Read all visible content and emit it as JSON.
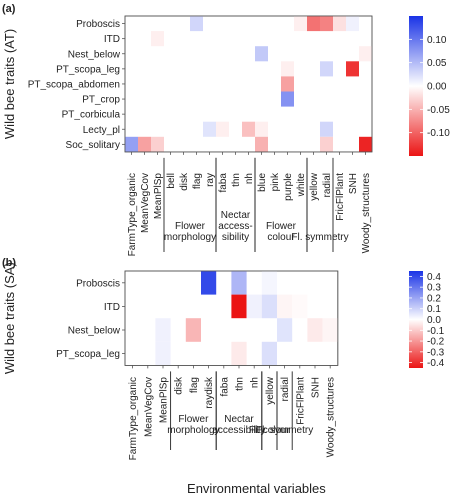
{
  "chart_data": [
    {
      "type": "heatmap",
      "panel_label": "(a)",
      "ylabel": "Wild bee traits (AT)",
      "rows": [
        "Proboscis",
        "ITD",
        "Nest_below",
        "PT_scopa_leg",
        "PT_scopa_abdomen",
        "PT_crop",
        "PT_corbicula",
        "Lecty_pl",
        "Soc_solitary"
      ],
      "columns": [
        "FarmType_organic",
        "MeanVegCov",
        "MeanPlSp",
        "bell",
        "disk",
        "flag",
        "ray",
        "faba",
        "thn",
        "nh",
        "blue",
        "pink",
        "purple",
        "white",
        "yellow",
        "radial",
        "FricFlPlant",
        "SNH",
        "Woody_structures"
      ],
      "groups": [
        {
          "label": [
            "Flower",
            "morphology"
          ],
          "from": "bell",
          "to": "ray"
        },
        {
          "label": [
            "Nectar",
            "access-",
            "sibility"
          ],
          "from": "faba",
          "to": "nh"
        },
        {
          "label": [
            "Flower",
            "colour"
          ],
          "from": "blue",
          "to": "white"
        },
        {
          "label": [
            "Fl. symmetry"
          ],
          "from": "yellow",
          "to": "radial"
        }
      ],
      "colorbar": {
        "ticks": [
          0.1,
          0.05,
          0.0,
          -0.05,
          -0.1
        ],
        "tick_labels": [
          "0.10",
          "0.05",
          "0.00",
          "-0.05",
          "-0.10"
        ],
        "range": [
          -0.15,
          0.15
        ]
      },
      "cells": [
        {
          "row": "Proboscis",
          "col": "flag",
          "value": 0.03
        },
        {
          "row": "Proboscis",
          "col": "white",
          "value": -0.01
        },
        {
          "row": "Proboscis",
          "col": "yellow",
          "value": -0.09
        },
        {
          "row": "Proboscis",
          "col": "radial",
          "value": -0.08
        },
        {
          "row": "Proboscis",
          "col": "FricFlPlant",
          "value": -0.02
        },
        {
          "row": "Proboscis",
          "col": "SNH",
          "value": 0.01
        },
        {
          "row": "ITD",
          "col": "MeanPlSp",
          "value": -0.01
        },
        {
          "row": "Nest_below",
          "col": "blue",
          "value": 0.04
        },
        {
          "row": "Nest_below",
          "col": "Woody_structures",
          "value": -0.01
        },
        {
          "row": "PT_scopa_leg",
          "col": "purple",
          "value": -0.01
        },
        {
          "row": "PT_scopa_leg",
          "col": "radial",
          "value": 0.03
        },
        {
          "row": "PT_scopa_leg",
          "col": "SNH",
          "value": -0.13
        },
        {
          "row": "PT_scopa_abdomen",
          "col": "purple",
          "value": -0.06
        },
        {
          "row": "PT_crop",
          "col": "purple",
          "value": 0.08
        },
        {
          "row": "Lecty_pl",
          "col": "ray",
          "value": 0.02
        },
        {
          "row": "Lecty_pl",
          "col": "faba",
          "value": -0.01
        },
        {
          "row": "Lecty_pl",
          "col": "nh",
          "value": -0.04
        },
        {
          "row": "Lecty_pl",
          "col": "blue",
          "value": -0.01
        },
        {
          "row": "Lecty_pl",
          "col": "radial",
          "value": 0.03
        },
        {
          "row": "Soc_solitary",
          "col": "FarmType_organic",
          "value": 0.07
        },
        {
          "row": "Soc_solitary",
          "col": "MeanVegCov",
          "value": -0.06
        },
        {
          "row": "Soc_solitary",
          "col": "MeanPlSp",
          "value": -0.03
        },
        {
          "row": "Soc_solitary",
          "col": "blue",
          "value": -0.05
        },
        {
          "row": "Soc_solitary",
          "col": "radial",
          "value": -0.03
        },
        {
          "row": "Soc_solitary",
          "col": "Woody_structures",
          "value": -0.14
        }
      ]
    },
    {
      "type": "heatmap",
      "panel_label": "(b)",
      "ylabel": "Wild bee traits (SA)",
      "xlabel": "Environmental variables",
      "rows": [
        "Proboscis",
        "ITD",
        "Nest_below",
        "PT_scopa_leg"
      ],
      "columns": [
        "FarmType_organic",
        "MeanVegCov",
        "MeanPlSp",
        "disk",
        "flag",
        "raydisk",
        "faba",
        "thn",
        "nh",
        "yellow",
        "radial",
        "FricFlPlant",
        "SNH",
        "Woody_structures"
      ],
      "groups": [
        {
          "label": [
            "Flower",
            "morphology"
          ],
          "from": "disk",
          "to": "raydisk"
        },
        {
          "label": [
            "Nectar",
            "accessibility"
          ],
          "from": "faba",
          "to": "nh"
        },
        {
          "label": [
            "Fl. colour"
          ],
          "from": "yellow",
          "to": "yellow"
        },
        {
          "label": [
            "Fl. symmetry"
          ],
          "from": "radial",
          "to": "radial"
        }
      ],
      "colorbar": {
        "ticks": [
          0.4,
          0.3,
          0.2,
          0.1,
          0.0,
          -0.1,
          -0.2,
          -0.3,
          -0.4
        ],
        "tick_labels": [
          "0.4",
          "0.3",
          "0.2",
          "0.1",
          "0.0",
          "-0.1",
          "-0.2",
          "-0.3",
          "-0.4"
        ],
        "range": [
          -0.45,
          0.45
        ]
      },
      "cells": [
        {
          "row": "Proboscis",
          "col": "raydisk",
          "value": 0.4
        },
        {
          "row": "Proboscis",
          "col": "thn",
          "value": 0.16
        },
        {
          "row": "Proboscis",
          "col": "yellow",
          "value": 0.02
        },
        {
          "row": "ITD",
          "col": "thn",
          "value": -0.45
        },
        {
          "row": "ITD",
          "col": "nh",
          "value": 0.03
        },
        {
          "row": "ITD",
          "col": "yellow",
          "value": 0.07
        },
        {
          "row": "ITD",
          "col": "radial",
          "value": -0.02
        },
        {
          "row": "ITD",
          "col": "FricFlPlant",
          "value": -0.01
        },
        {
          "row": "Nest_below",
          "col": "MeanPlSp",
          "value": 0.03
        },
        {
          "row": "Nest_below",
          "col": "flag",
          "value": -0.14
        },
        {
          "row": "Nest_below",
          "col": "radial",
          "value": 0.06
        },
        {
          "row": "Nest_below",
          "col": "SNH",
          "value": -0.04
        },
        {
          "row": "Nest_below",
          "col": "Woody_structures",
          "value": -0.02
        },
        {
          "row": "PT_scopa_leg",
          "col": "MeanPlSp",
          "value": 0.03
        },
        {
          "row": "PT_scopa_leg",
          "col": "thn",
          "value": -0.04
        },
        {
          "row": "PT_scopa_leg",
          "col": "yellow",
          "value": 0.07
        }
      ]
    }
  ]
}
